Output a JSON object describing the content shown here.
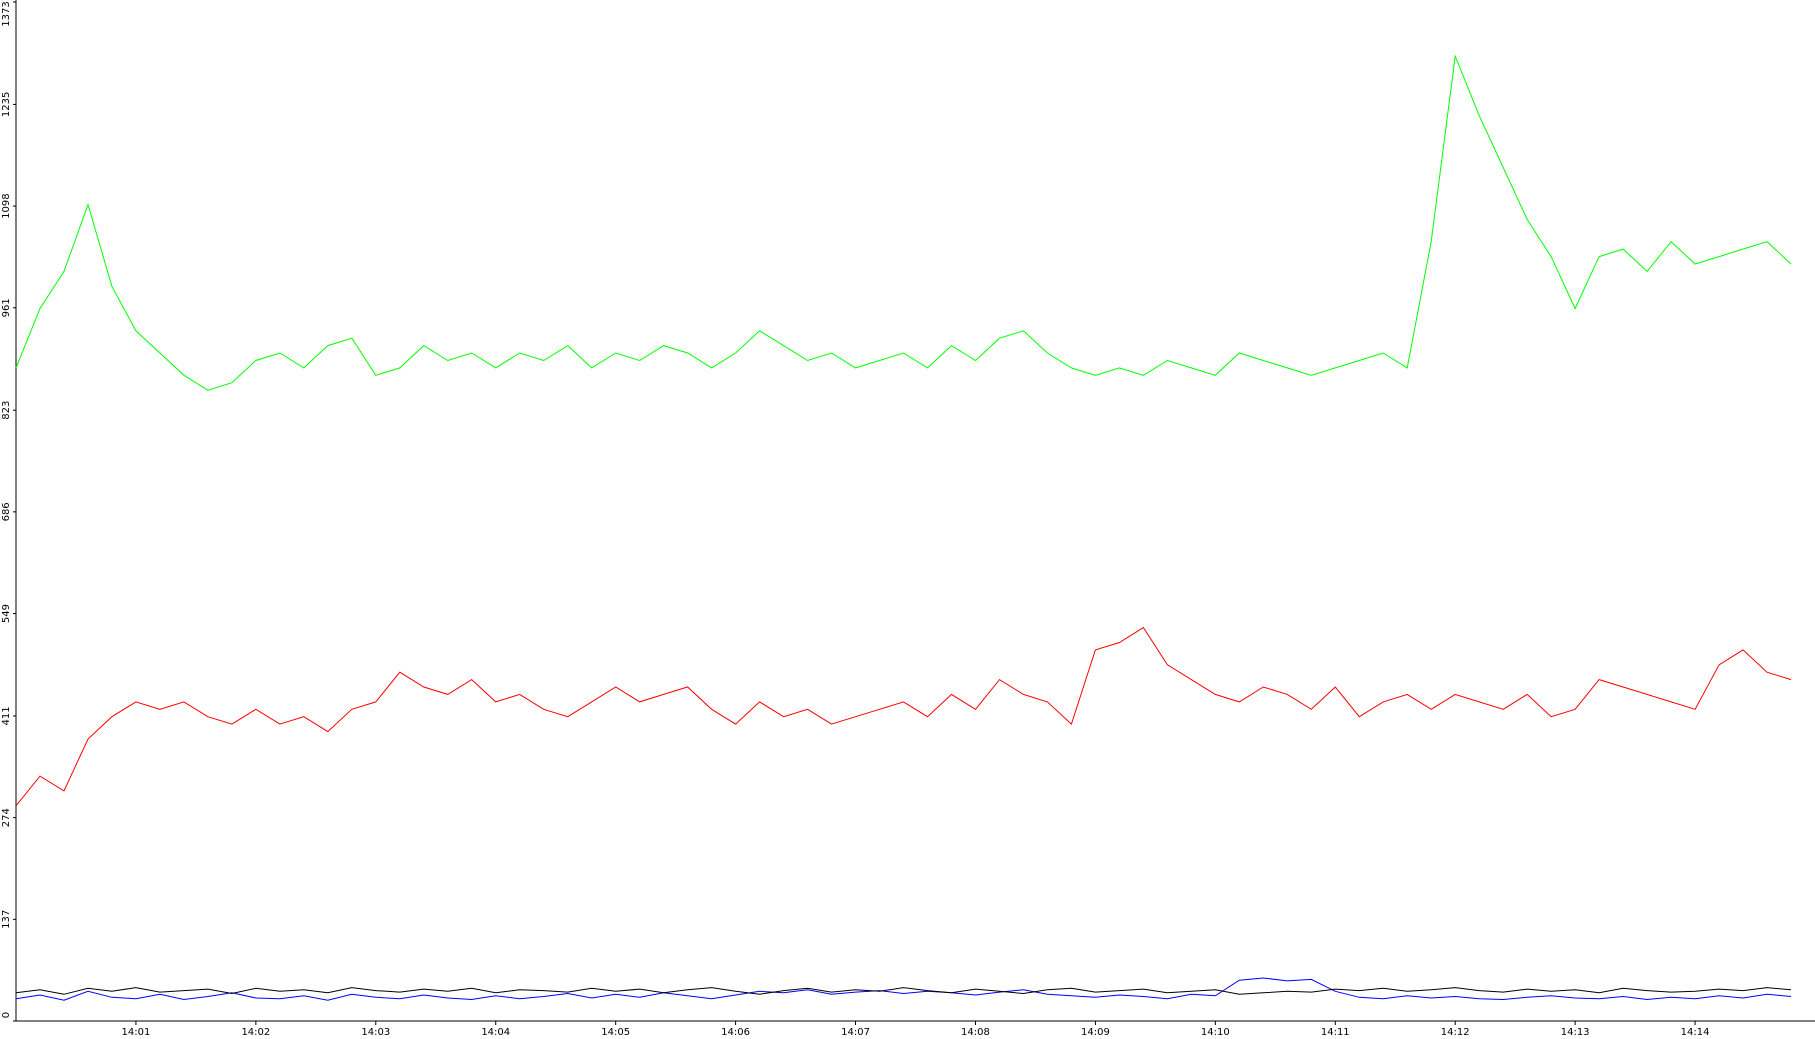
{
  "chart_data": {
    "type": "line",
    "x": [
      0,
      0.2,
      0.4,
      0.6,
      0.8,
      1,
      1.2,
      1.4,
      1.6,
      1.8,
      2,
      2.2,
      2.4,
      2.6,
      2.8,
      3,
      3.2,
      3.4,
      3.6,
      3.8,
      4,
      4.2,
      4.4,
      4.6,
      4.8,
      5,
      5.2,
      5.4,
      5.6,
      5.8,
      6,
      6.2,
      6.4,
      6.6,
      6.8,
      7,
      7.2,
      7.4,
      7.6,
      7.8,
      8,
      8.2,
      8.4,
      8.6,
      8.8,
      9,
      9.2,
      9.4,
      9.6,
      9.8,
      10,
      10.2,
      10.4,
      10.6,
      10.8,
      11,
      11.2,
      11.4,
      11.6,
      11.8,
      12,
      12.2,
      12.4,
      12.6,
      12.8,
      13,
      13.2,
      13.4,
      13.6,
      13.8,
      14,
      14.2,
      14.4,
      14.6,
      14.8
    ],
    "series": [
      {
        "color": "#00ff00",
        "values": [
          880,
          960,
          1010,
          1100,
          990,
          930,
          900,
          870,
          850,
          860,
          890,
          900,
          880,
          910,
          920,
          870,
          880,
          910,
          890,
          900,
          880,
          900,
          890,
          910,
          880,
          900,
          890,
          910,
          900,
          880,
          900,
          930,
          910,
          890,
          900,
          880,
          890,
          900,
          880,
          910,
          890,
          920,
          930,
          900,
          880,
          870,
          880,
          870,
          890,
          880,
          870,
          900,
          890,
          880,
          870,
          880,
          890,
          900,
          880,
          1050,
          1300,
          1220,
          1150,
          1080,
          1030,
          960,
          1030,
          1040,
          1010,
          1050,
          1020,
          1030,
          1040,
          1050,
          1020
        ]
      },
      {
        "color": "#ff0000",
        "values": [
          290,
          330,
          310,
          380,
          410,
          430,
          420,
          430,
          410,
          400,
          420,
          400,
          410,
          390,
          420,
          430,
          470,
          450,
          440,
          460,
          430,
          440,
          420,
          410,
          430,
          450,
          430,
          440,
          450,
          420,
          400,
          430,
          410,
          420,
          400,
          410,
          420,
          430,
          410,
          440,
          420,
          460,
          440,
          430,
          400,
          500,
          510,
          530,
          480,
          460,
          440,
          430,
          450,
          440,
          420,
          450,
          410,
          430,
          440,
          420,
          440,
          430,
          420,
          440,
          410,
          420,
          460,
          450,
          440,
          430,
          420,
          480,
          500,
          470,
          460
        ]
      },
      {
        "color": "#0000ff",
        "values": [
          30,
          35,
          28,
          40,
          32,
          30,
          36,
          29,
          33,
          38,
          31,
          30,
          34,
          28,
          36,
          32,
          30,
          35,
          31,
          29,
          34,
          30,
          33,
          37,
          31,
          36,
          32,
          38,
          34,
          30,
          35,
          40,
          38,
          42,
          36,
          39,
          41,
          37,
          40,
          38,
          35,
          39,
          42,
          36,
          34,
          32,
          35,
          33,
          30,
          36,
          34,
          55,
          58,
          54,
          56,
          40,
          32,
          30,
          34,
          31,
          33,
          30,
          29,
          32,
          34,
          31,
          30,
          33,
          29,
          32,
          30,
          34,
          31,
          36,
          33
        ]
      },
      {
        "color": "#000000",
        "values": [
          38,
          42,
          36,
          44,
          40,
          45,
          39,
          41,
          43,
          37,
          44,
          40,
          42,
          38,
          45,
          41,
          39,
          43,
          40,
          44,
          38,
          42,
          41,
          39,
          44,
          40,
          43,
          38,
          42,
          45,
          40,
          36,
          41,
          44,
          39,
          42,
          40,
          45,
          41,
          38,
          43,
          40,
          37,
          42,
          44,
          39,
          41,
          43,
          38,
          40,
          42,
          36,
          38,
          40,
          39,
          43,
          41,
          44,
          40,
          42,
          45,
          41,
          39,
          43,
          40,
          42,
          38,
          44,
          41,
          39,
          40,
          43,
          41,
          45,
          42
        ]
      }
    ],
    "xlim": [
      0,
      15
    ],
    "ylim": [
      0,
      1373
    ],
    "yticks": [
      0,
      137,
      274,
      411,
      549,
      686,
      823,
      961,
      1098,
      1235,
      1373
    ],
    "xticks": [
      {
        "value": 1,
        "label": "14:01"
      },
      {
        "value": 2,
        "label": "14:02"
      },
      {
        "value": 3,
        "label": "14:03"
      },
      {
        "value": 4,
        "label": "14:04"
      },
      {
        "value": 5,
        "label": "14:05"
      },
      {
        "value": 6,
        "label": "14:06"
      },
      {
        "value": 7,
        "label": "14:07"
      },
      {
        "value": 8,
        "label": "14:08"
      },
      {
        "value": 9,
        "label": "14:09"
      },
      {
        "value": 10,
        "label": "14:10"
      },
      {
        "value": 11,
        "label": "14:11"
      },
      {
        "value": 12,
        "label": "14:12"
      },
      {
        "value": 13,
        "label": "14:13"
      },
      {
        "value": 14,
        "label": "14:14"
      }
    ]
  }
}
